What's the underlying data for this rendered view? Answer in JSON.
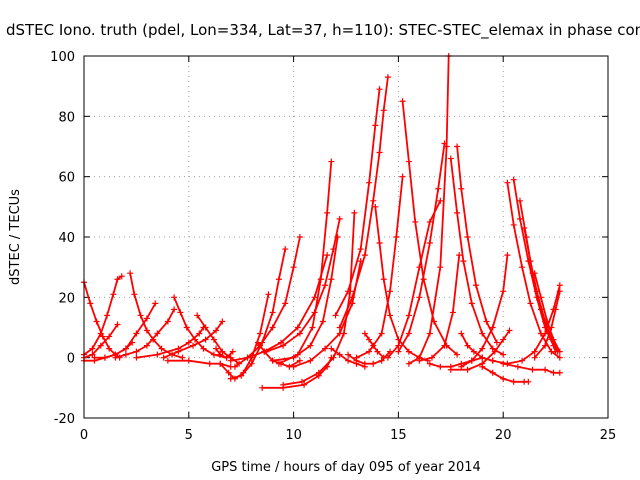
{
  "chart_data": {
    "type": "scatter",
    "title": "dSTEC Iono. truth (pdel, Lon=334, Lat=37, h=110): STEC-STEC_elemax in phase cont",
    "xlabel": "GPS time / hours of day 095 of year 2014",
    "ylabel": "dSTEC  / TECUs",
    "xlim": [
      0,
      25
    ],
    "ylim": [
      -20,
      100
    ],
    "xticks": [
      0,
      5,
      10,
      15,
      20,
      25
    ],
    "yticks": [
      -20,
      0,
      20,
      40,
      60,
      80,
      100
    ],
    "grid": true,
    "marker": "+",
    "color": "#ff0000",
    "series": [
      {
        "x": [
          0.0,
          0.3,
          0.6,
          0.9,
          1.2,
          1.5,
          1.7
        ],
        "y": [
          25,
          18,
          12,
          7,
          3,
          1,
          0
        ]
      },
      {
        "x": [
          0.0,
          0.4,
          0.8,
          1.1,
          1.4,
          1.6,
          1.8
        ],
        "y": [
          1,
          3,
          8,
          14,
          21,
          26,
          27
        ]
      },
      {
        "x": [
          0.0,
          0.4,
          0.8,
          1.2,
          1.6
        ],
        "y": [
          0,
          1,
          4,
          7,
          11
        ]
      },
      {
        "x": [
          0.0,
          0.5,
          1.0,
          1.5,
          2.0,
          2.3
        ],
        "y": [
          -1,
          -1,
          0,
          1,
          3,
          5
        ]
      },
      {
        "x": [
          2.2,
          2.4,
          2.7,
          3.0,
          3.3,
          3.7,
          4.2,
          4.7
        ],
        "y": [
          28,
          21,
          14,
          9,
          6,
          3,
          1,
          0
        ]
      },
      {
        "x": [
          0.5,
          1.0,
          1.5,
          2.0,
          2.5,
          3.0,
          3.4
        ],
        "y": [
          0,
          0,
          1,
          3,
          8,
          13,
          18
        ]
      },
      {
        "x": [
          1.5,
          2.0,
          2.5,
          3.0,
          3.5,
          4.0,
          4.3
        ],
        "y": [
          0,
          1,
          2,
          4,
          8,
          12,
          16
        ]
      },
      {
        "x": [
          4.3,
          4.6,
          4.9,
          5.3,
          5.7,
          6.2,
          6.8
        ],
        "y": [
          20,
          15,
          10,
          6,
          3,
          1,
          0
        ]
      },
      {
        "x": [
          2.5,
          3.5,
          4.5,
          5.0,
          5.5,
          5.7
        ],
        "y": [
          0,
          1,
          3,
          5,
          8,
          10
        ]
      },
      {
        "x": [
          5.4,
          5.8,
          6.2,
          6.6,
          7.0,
          7.4
        ],
        "y": [
          14,
          10,
          6,
          2,
          0,
          -2
        ]
      },
      {
        "x": [
          3.8,
          4.5,
          5.2,
          5.8,
          6.3,
          6.6
        ],
        "y": [
          0,
          2,
          4,
          6,
          9,
          12
        ]
      },
      {
        "x": [
          4.0,
          5.0,
          6.0,
          6.5,
          7.0
        ],
        "y": [
          -1,
          -1,
          -2,
          -2,
          -3
        ]
      },
      {
        "x": [
          6.3,
          6.5,
          6.8,
          7.1
        ],
        "y": [
          3,
          1,
          0,
          2
        ]
      },
      {
        "x": [
          6.5,
          6.9,
          7.2,
          7.6,
          8.0,
          8.4,
          8.8
        ],
        "y": [
          -2,
          -5,
          -7,
          -5,
          0,
          8,
          21
        ]
      },
      {
        "x": [
          7.0,
          7.5,
          8.0,
          8.5,
          9.0,
          9.3,
          9.6
        ],
        "y": [
          -7,
          -6,
          -2,
          5,
          15,
          26,
          36
        ]
      },
      {
        "x": [
          7.2,
          7.8,
          8.4,
          9.0,
          9.6,
          10.0,
          10.3
        ],
        "y": [
          -3,
          0,
          4,
          10,
          18,
          30,
          40
        ]
      },
      {
        "x": [
          7.0,
          7.8,
          8.6,
          9.4,
          10.2,
          11.0,
          11.6
        ],
        "y": [
          -1,
          0,
          2,
          5,
          10,
          20,
          34
        ]
      },
      {
        "x": [
          8.3,
          8.6,
          9.0,
          9.4,
          9.8,
          10.3
        ],
        "y": [
          5,
          2,
          -1,
          -2,
          -3,
          -1
        ]
      },
      {
        "x": [
          8.7,
          9.5,
          10.3,
          11.0,
          11.5,
          11.9,
          12.2
        ],
        "y": [
          2,
          4,
          8,
          15,
          24,
          36,
          46
        ]
      },
      {
        "x": [
          9.0,
          10.0,
          10.8,
          11.4,
          11.8,
          12.1
        ],
        "y": [
          -1,
          0,
          4,
          12,
          26,
          40
        ]
      },
      {
        "x": [
          9.3,
          10.2,
          10.9,
          11.3,
          11.6,
          11.8
        ],
        "y": [
          -2,
          1,
          10,
          26,
          48,
          65
        ]
      },
      {
        "x": [
          10.0,
          10.8,
          11.5,
          12.2,
          12.8,
          13.2
        ],
        "y": [
          -3,
          -1,
          3,
          8,
          18,
          32
        ]
      },
      {
        "x": [
          8.5,
          9.5,
          10.5,
          11.2,
          11.6,
          11.8
        ],
        "y": [
          -10,
          -10,
          -9,
          -6,
          -3,
          0
        ]
      },
      {
        "x": [
          9.5,
          10.4,
          11.2,
          11.9,
          12.4,
          12.7,
          12.9
        ],
        "y": [
          -9,
          -8,
          -5,
          0,
          8,
          22,
          48
        ]
      },
      {
        "x": [
          11.8,
          12.2,
          12.6,
          13.0,
          13.4
        ],
        "y": [
          3,
          1,
          -1,
          -2,
          -3
        ]
      },
      {
        "x": [
          12.0,
          12.6,
          13.2,
          13.6,
          13.9,
          14.1
        ],
        "y": [
          14,
          22,
          36,
          58,
          77,
          89
        ]
      },
      {
        "x": [
          12.2,
          12.8,
          13.4,
          13.8,
          14.1,
          14.3,
          14.5
        ],
        "y": [
          10,
          20,
          34,
          52,
          68,
          82,
          93
        ]
      },
      {
        "x": [
          12.6,
          13.0,
          13.4,
          13.8,
          14.2,
          14.6
        ],
        "y": [
          1,
          -1,
          -2,
          -2,
          -1,
          2
        ]
      },
      {
        "x": [
          13.0,
          13.6,
          14.2,
          14.6,
          14.9,
          15.2
        ],
        "y": [
          0,
          2,
          8,
          22,
          40,
          60
        ]
      },
      {
        "x": [
          13.4,
          13.6,
          13.8,
          14.0,
          14.3
        ],
        "y": [
          8,
          6,
          4,
          2,
          0
        ]
      },
      {
        "x": [
          13.9,
          14.1,
          14.3,
          14.6,
          15.0,
          15.5,
          16.0,
          16.4
        ],
        "y": [
          50,
          38,
          26,
          14,
          6,
          2,
          0,
          -1
        ]
      },
      {
        "x": [
          15.2,
          15.5,
          15.8,
          16.2,
          16.7,
          17.3,
          17.8
        ],
        "y": [
          85,
          65,
          45,
          26,
          12,
          4,
          1
        ]
      },
      {
        "x": [
          15.0,
          15.5,
          16.0,
          16.5,
          16.9,
          17.2
        ],
        "y": [
          2,
          8,
          20,
          38,
          56,
          71
        ]
      },
      {
        "x": [
          14.5,
          15.0,
          15.5,
          16.0,
          16.5,
          17.0
        ],
        "y": [
          0,
          4,
          14,
          30,
          45,
          52
        ]
      },
      {
        "x": [
          15.5,
          16.0,
          16.5,
          17.0,
          17.3,
          17.4
        ],
        "y": [
          -2,
          0,
          8,
          30,
          70,
          100
        ]
      },
      {
        "x": [
          16.0,
          16.6,
          17.2,
          17.6,
          17.9
        ],
        "y": [
          -1,
          0,
          4,
          15,
          34
        ]
      },
      {
        "x": [
          16.5,
          17.0,
          17.5,
          18.0,
          18.5,
          19.0
        ],
        "y": [
          -2,
          -3,
          -3,
          -2,
          -1,
          0
        ]
      },
      {
        "x": [
          17.5,
          17.8,
          18.1,
          18.5,
          19.0,
          19.5,
          20.0
        ],
        "y": [
          66,
          48,
          32,
          18,
          8,
          3,
          1
        ]
      },
      {
        "x": [
          17.8,
          18.0,
          18.3,
          18.7,
          19.2,
          19.7
        ],
        "y": [
          70,
          56,
          40,
          24,
          12,
          5
        ]
      },
      {
        "x": [
          18.0,
          18.3,
          18.6,
          19.0,
          19.5
        ],
        "y": [
          8,
          4,
          2,
          0,
          -1
        ]
      },
      {
        "x": [
          18.0,
          18.5,
          19.0,
          19.5,
          20.0,
          20.2
        ],
        "y": [
          -3,
          -1,
          3,
          10,
          22,
          34
        ]
      },
      {
        "x": [
          17.5,
          18.3,
          19.0,
          19.6,
          20.0,
          20.3
        ],
        "y": [
          -4,
          -4,
          -2,
          2,
          6,
          9
        ]
      },
      {
        "x": [
          19.0,
          19.5,
          20.0,
          20.5,
          21.0,
          21.2
        ],
        "y": [
          -3,
          -5,
          -7,
          -8,
          -8,
          -8
        ]
      },
      {
        "x": [
          20.2,
          20.5,
          20.9,
          21.3,
          21.8,
          22.3,
          22.7
        ],
        "y": [
          58,
          44,
          30,
          18,
          8,
          2,
          0
        ]
      },
      {
        "x": [
          20.5,
          20.8,
          21.2,
          21.6,
          22.0,
          22.4
        ],
        "y": [
          59,
          46,
          32,
          20,
          10,
          4
        ]
      },
      {
        "x": [
          20.8,
          21.1,
          21.4,
          21.8,
          22.2,
          22.6
        ],
        "y": [
          52,
          40,
          28,
          16,
          8,
          2
        ]
      },
      {
        "x": [
          21.0,
          21.3,
          21.6,
          22.0,
          22.3,
          22.5
        ],
        "y": [
          43,
          32,
          22,
          12,
          6,
          2
        ]
      },
      {
        "x": [
          19.5,
          20.2,
          20.9,
          21.5,
          22.0,
          22.4,
          22.7
        ],
        "y": [
          -1,
          -2,
          -1,
          2,
          8,
          16,
          24
        ]
      },
      {
        "x": [
          21.5,
          21.8,
          22.1,
          22.4,
          22.7
        ],
        "y": [
          28,
          20,
          12,
          6,
          2
        ]
      },
      {
        "x": [
          20.0,
          20.7,
          21.4,
          22.0,
          22.4,
          22.7
        ],
        "y": [
          -2,
          -3,
          -4,
          -4,
          -5,
          -5
        ]
      },
      {
        "x": [
          21.5,
          22.0,
          22.3,
          22.5,
          22.7
        ],
        "y": [
          0,
          4,
          10,
          16,
          22
        ]
      }
    ]
  }
}
